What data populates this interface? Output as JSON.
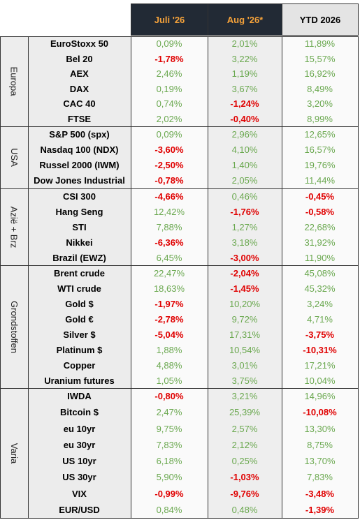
{
  "header": {
    "columns": [
      "Juli '26",
      "Aug '26*",
      "YTD 2026"
    ]
  },
  "groups": [
    {
      "label": "Europa",
      "rows": [
        [
          "EuroStoxx 50",
          "0,09%",
          "2,01%",
          "11,89%"
        ],
        [
          "Bel 20",
          "-1,78%",
          "3,22%",
          "15,57%"
        ],
        [
          "AEX",
          "2,46%",
          "1,19%",
          "16,92%"
        ],
        [
          "DAX",
          "0,19%",
          "3,67%",
          "8,49%"
        ],
        [
          "CAC 40",
          "0,74%",
          "-1,24%",
          "3,20%"
        ],
        [
          "FTSE",
          "2,02%",
          "-0,40%",
          "8,99%"
        ]
      ]
    },
    {
      "label": "USA",
      "rows": [
        [
          "S&P 500 (spx)",
          "0,09%",
          "2,96%",
          "12,65%"
        ],
        [
          "Nasdaq 100 (NDX)",
          "-3,60%",
          "4,10%",
          "16,57%"
        ],
        [
          "Russel 2000 (IWM)",
          "-2,50%",
          "1,40%",
          "19,76%"
        ],
        [
          "Dow Jones Industrial",
          "-0,78%",
          "2,05%",
          "11,44%"
        ]
      ]
    },
    {
      "label": "Azië + Brz",
      "rows": [
        [
          "CSI 300",
          "-4,66%",
          "0,46%",
          "-0,45%"
        ],
        [
          "Hang Seng",
          "12,42%",
          "-1,76%",
          "-0,58%"
        ],
        [
          "STI",
          "7,88%",
          "1,27%",
          "22,68%"
        ],
        [
          "Nikkei",
          "-6,36%",
          "3,18%",
          "31,92%"
        ],
        [
          "Brazil (EWZ)",
          "6,45%",
          "-3,00%",
          "11,90%"
        ]
      ]
    },
    {
      "label": "Grondstoffen",
      "rows": [
        [
          "Brent crude",
          "22,47%",
          "-2,04%",
          "45,08%"
        ],
        [
          "WTI crude",
          "18,63%",
          "-1,45%",
          "45,32%"
        ],
        [
          "Gold $",
          "-1,97%",
          "10,20%",
          "3,24%"
        ],
        [
          "Gold €",
          "-2,78%",
          "9,72%",
          "4,71%"
        ],
        [
          "Silver $",
          "-5,04%",
          "17,31%",
          "-3,75%"
        ],
        [
          "Platinum $",
          "1,88%",
          "10,54%",
          "-10,31%"
        ],
        [
          "Copper",
          "4,88%",
          "3,01%",
          "17,21%"
        ],
        [
          "Uranium futures",
          "1,05%",
          "3,75%",
          "10,04%"
        ]
      ]
    },
    {
      "label": "Varia",
      "rows": [
        [
          "IWDA",
          "-0,80%",
          "3,21%",
          "14,96%"
        ],
        [
          "Bitcoin $",
          "2,47%",
          "25,39%",
          "-10,08%"
        ],
        [
          "eu 10yr",
          "9,75%",
          "2,57%",
          "13,30%"
        ],
        [
          "eu 30yr",
          "7,83%",
          "2,12%",
          "8,75%"
        ],
        [
          "US 10yr",
          "6,18%",
          "0,25%",
          "13,70%"
        ],
        [
          "US 30yr",
          "5,90%",
          "-1,03%",
          "7,83%"
        ],
        [
          "VIX",
          "-0,99%",
          "-9,76%",
          "-3,48%"
        ],
        [
          "EUR/USD",
          "0,84%",
          "0,48%",
          "-1,39%"
        ]
      ]
    }
  ]
}
